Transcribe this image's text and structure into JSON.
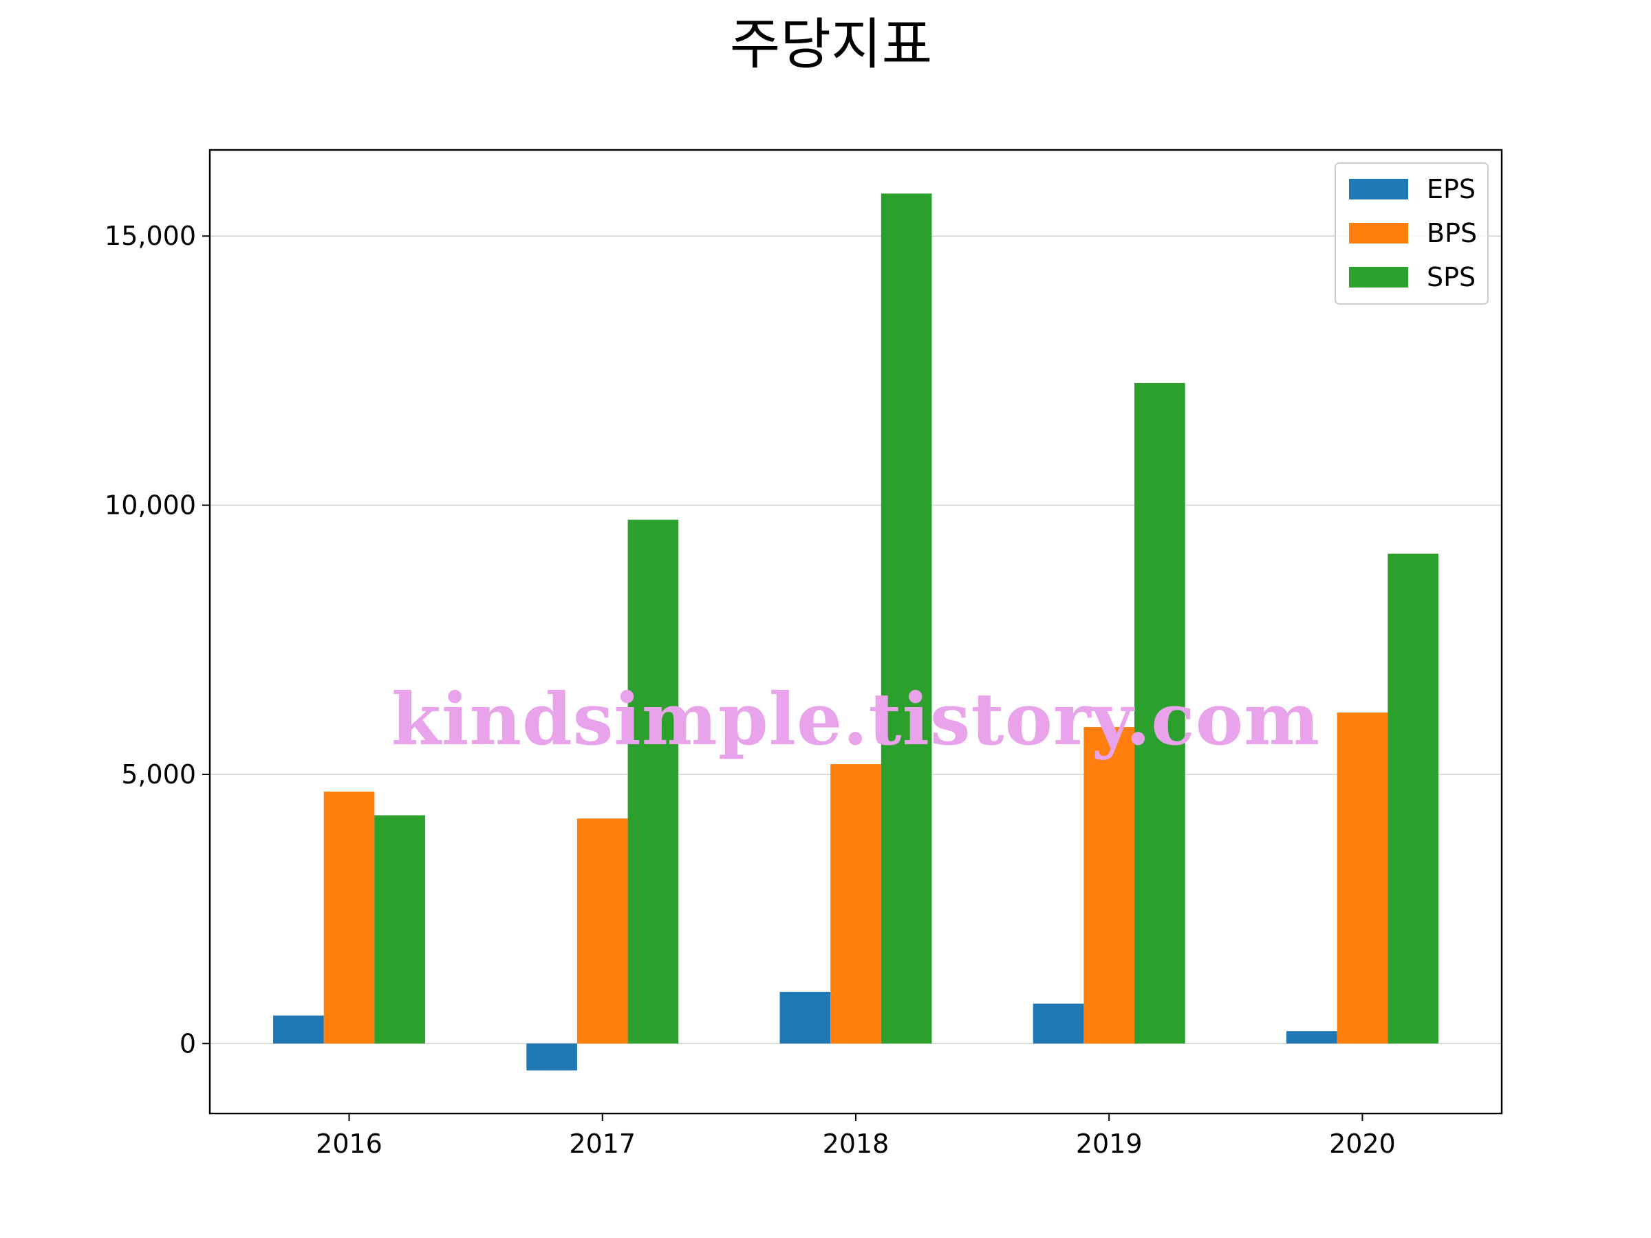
{
  "chart_data": {
    "type": "bar",
    "title": "주당지표",
    "xlabel": "",
    "ylabel": "",
    "categories": [
      "2016",
      "2017",
      "2018",
      "2019",
      "2020"
    ],
    "series": [
      {
        "name": "EPS",
        "color": "#1f77b4",
        "values": [
          520,
          -500,
          960,
          740,
          230
        ]
      },
      {
        "name": "BPS",
        "color": "#ff7f0e",
        "values": [
          4680,
          4180,
          5190,
          5880,
          6150
        ]
      },
      {
        "name": "SPS",
        "color": "#2ca02c",
        "values": [
          4240,
          9730,
          15790,
          12270,
          9100
        ]
      }
    ],
    "ylim": [
      -1300,
      16600
    ],
    "yticks": [
      0,
      5000,
      10000,
      15000
    ],
    "ytick_labels": [
      "0",
      "5,000",
      "10,000",
      "15,000"
    ],
    "grid": "horizontal",
    "legend_position": "top-right"
  },
  "watermark": {
    "text": "kindsimple.tistory.com",
    "color": "#e8a3ea"
  }
}
